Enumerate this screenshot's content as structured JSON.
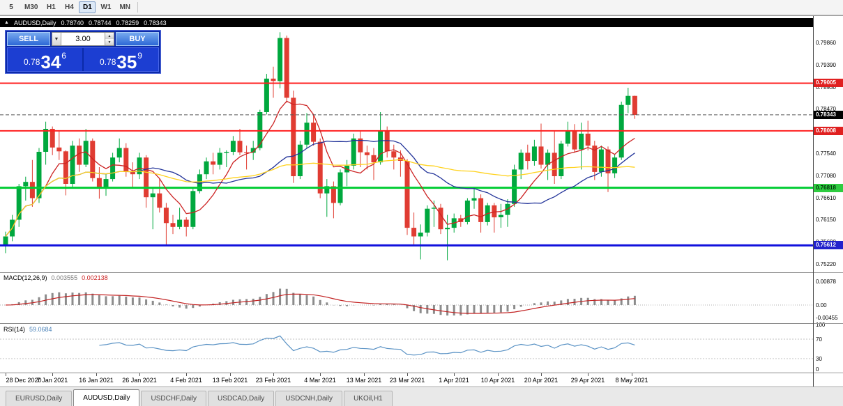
{
  "toolbar": {
    "timeframes": [
      {
        "label": "5",
        "active": false
      },
      {
        "label": "M30",
        "active": false
      },
      {
        "label": "H1",
        "active": false
      },
      {
        "label": "H4",
        "active": false
      },
      {
        "label": "D1",
        "active": true
      },
      {
        "label": "W1",
        "active": false
      },
      {
        "label": "MN",
        "active": false
      }
    ]
  },
  "symbol_bar": {
    "arrow": "▲",
    "symbol": "AUDUSD,Daily",
    "open": "0.78740",
    "high": "0.78744",
    "low": "0.78259",
    "close": "0.78343"
  },
  "trade_panel": {
    "sell_label": "SELL",
    "buy_label": "BUY",
    "volume": "3.00",
    "dropdown_icon": "▼",
    "spin_up": "▲",
    "spin_down": "▼",
    "sell_price": {
      "prefix": "0.78",
      "big": "34",
      "sup": "6"
    },
    "buy_price": {
      "prefix": "0.78",
      "big": "35",
      "sup": "9"
    }
  },
  "chart_data": {
    "type": "candlestick",
    "symbol": "AUDUSD",
    "timeframe": "Daily",
    "title": "AUDUSD,Daily",
    "colors": {
      "bull": "#00a83e",
      "bear": "#e03c32",
      "background": "#ffffff"
    },
    "price_axis": {
      "min": 0.7505,
      "max": 0.8041,
      "ticks": [
        "0.79860",
        "0.79390",
        "0.78930",
        "0.78470",
        "0.77540",
        "0.77080",
        "0.76610",
        "0.76150",
        "0.75690",
        "0.75220"
      ]
    },
    "levels": [
      {
        "label": "0.79005",
        "value": 0.79005,
        "line_color": "#ff2020",
        "badge_bg": "#e02020",
        "badge_fg": "#ffffff",
        "width": 2
      },
      {
        "label": "0.78008",
        "value": 0.78008,
        "line_color": "#ff2020",
        "badge_bg": "#e02020",
        "badge_fg": "#ffffff",
        "width": 2
      },
      {
        "label": "0.76818",
        "value": 0.76818,
        "line_color": "#00cc33",
        "badge_bg": "#2ecc40",
        "badge_fg": "#00330a",
        "width": 3
      },
      {
        "label": "0.75612",
        "value": 0.75612,
        "line_color": "#1111dd",
        "badge_bg": "#2222cc",
        "badge_fg": "#ffffff",
        "width": 3
      }
    ],
    "current_price": {
      "label": "0.78343",
      "value": 0.78343,
      "badge_bg": "#000000",
      "badge_fg": "#ffffff"
    },
    "moving_averages": [
      {
        "name": "ma-fast",
        "period": 7,
        "color": "#cc2222"
      },
      {
        "name": "ma-mid",
        "period": 21,
        "color": "#223399"
      },
      {
        "name": "ma-slow",
        "period": 55,
        "color": "#ffd21e"
      }
    ],
    "candles": [
      [
        0.756,
        0.759,
        0.7545,
        0.758
      ],
      [
        0.758,
        0.7625,
        0.757,
        0.7615
      ],
      [
        0.7615,
        0.769,
        0.76,
        0.7685
      ],
      [
        0.7685,
        0.7705,
        0.7655,
        0.7694
      ],
      [
        0.7694,
        0.774,
        0.7642,
        0.766
      ],
      [
        0.766,
        0.7765,
        0.765,
        0.7757
      ],
      [
        0.7757,
        0.782,
        0.773,
        0.7805
      ],
      [
        0.7805,
        0.781,
        0.775,
        0.7766
      ],
      [
        0.7766,
        0.78,
        0.774,
        0.7758
      ],
      [
        0.7758,
        0.776,
        0.7666,
        0.769
      ],
      [
        0.769,
        0.778,
        0.768,
        0.777
      ],
      [
        0.777,
        0.7785,
        0.7715,
        0.773
      ],
      [
        0.773,
        0.7805,
        0.7725,
        0.778
      ],
      [
        0.778,
        0.7785,
        0.7695,
        0.7702
      ],
      [
        0.7702,
        0.7725,
        0.7659,
        0.768
      ],
      [
        0.768,
        0.771,
        0.7665,
        0.77
      ],
      [
        0.77,
        0.7755,
        0.7695,
        0.7745
      ],
      [
        0.7745,
        0.7785,
        0.7735,
        0.7765
      ],
      [
        0.7765,
        0.7775,
        0.7705,
        0.7715
      ],
      [
        0.7715,
        0.7735,
        0.768,
        0.771
      ],
      [
        0.771,
        0.7755,
        0.77,
        0.7745
      ],
      [
        0.7745,
        0.775,
        0.764,
        0.7662
      ],
      [
        0.7662,
        0.768,
        0.7595,
        0.767
      ],
      [
        0.767,
        0.77,
        0.763,
        0.764
      ],
      [
        0.764,
        0.765,
        0.7563,
        0.7608
      ],
      [
        0.7608,
        0.7625,
        0.7585,
        0.76
      ],
      [
        0.76,
        0.764,
        0.7595,
        0.7615
      ],
      [
        0.7615,
        0.762,
        0.758,
        0.76
      ],
      [
        0.76,
        0.768,
        0.7595,
        0.7675
      ],
      [
        0.7675,
        0.772,
        0.767,
        0.771
      ],
      [
        0.771,
        0.7745,
        0.77,
        0.7737
      ],
      [
        0.7737,
        0.7755,
        0.771,
        0.773
      ],
      [
        0.773,
        0.7765,
        0.772,
        0.7755
      ],
      [
        0.7755,
        0.776,
        0.7725,
        0.7757
      ],
      [
        0.7757,
        0.779,
        0.775,
        0.778
      ],
      [
        0.778,
        0.7805,
        0.775,
        0.7756
      ],
      [
        0.7756,
        0.777,
        0.772,
        0.7755
      ],
      [
        0.7755,
        0.778,
        0.774,
        0.7765
      ],
      [
        0.7765,
        0.7845,
        0.776,
        0.784
      ],
      [
        0.784,
        0.792,
        0.7835,
        0.791
      ],
      [
        0.791,
        0.7935,
        0.787,
        0.7905
      ],
      [
        0.7905,
        0.8007,
        0.789,
        0.7995
      ],
      [
        0.7995,
        0.8,
        0.786,
        0.787
      ],
      [
        0.787,
        0.7885,
        0.7692,
        0.7706
      ],
      [
        0.7706,
        0.778,
        0.77,
        0.7772
      ],
      [
        0.7772,
        0.7838,
        0.7765,
        0.7818
      ],
      [
        0.7818,
        0.7835,
        0.777,
        0.7778
      ],
      [
        0.7778,
        0.7785,
        0.766,
        0.767
      ],
      [
        0.767,
        0.77,
        0.7621,
        0.7685
      ],
      [
        0.7685,
        0.7695,
        0.7618,
        0.765
      ],
      [
        0.765,
        0.772,
        0.7645,
        0.7714
      ],
      [
        0.7714,
        0.774,
        0.7685,
        0.7728
      ],
      [
        0.7728,
        0.7795,
        0.772,
        0.7785
      ],
      [
        0.7785,
        0.78,
        0.7725,
        0.7756
      ],
      [
        0.7756,
        0.777,
        0.772,
        0.775
      ],
      [
        0.775,
        0.7765,
        0.7698,
        0.7735
      ],
      [
        0.7735,
        0.784,
        0.773,
        0.78
      ],
      [
        0.78,
        0.781,
        0.7745,
        0.7758
      ],
      [
        0.7758,
        0.7772,
        0.772,
        0.7745
      ],
      [
        0.7745,
        0.776,
        0.7705,
        0.7738
      ],
      [
        0.7738,
        0.7742,
        0.7583,
        0.7598
      ],
      [
        0.7598,
        0.763,
        0.756,
        0.758
      ],
      [
        0.758,
        0.7605,
        0.7532,
        0.7588
      ],
      [
        0.7588,
        0.7645,
        0.758,
        0.7638
      ],
      [
        0.7638,
        0.7655,
        0.76,
        0.764
      ],
      [
        0.764,
        0.7648,
        0.7585,
        0.7595
      ],
      [
        0.7595,
        0.7625,
        0.753,
        0.7598
      ],
      [
        0.7598,
        0.7628,
        0.7588,
        0.7618
      ],
      [
        0.7618,
        0.7625,
        0.76,
        0.761
      ],
      [
        0.761,
        0.766,
        0.7605,
        0.7655
      ],
      [
        0.7655,
        0.768,
        0.7638,
        0.766
      ],
      [
        0.766,
        0.7668,
        0.7588,
        0.761
      ],
      [
        0.761,
        0.765,
        0.7603,
        0.7645
      ],
      [
        0.7645,
        0.765,
        0.7588,
        0.762
      ],
      [
        0.762,
        0.7648,
        0.7598,
        0.7625
      ],
      [
        0.7625,
        0.7658,
        0.76,
        0.7648
      ],
      [
        0.7648,
        0.773,
        0.7642,
        0.772
      ],
      [
        0.772,
        0.7762,
        0.77,
        0.7755
      ],
      [
        0.7755,
        0.7772,
        0.772,
        0.7738
      ],
      [
        0.7738,
        0.7782,
        0.7728,
        0.7768
      ],
      [
        0.7768,
        0.7816,
        0.7722,
        0.773
      ],
      [
        0.773,
        0.7762,
        0.7698,
        0.7755
      ],
      [
        0.7755,
        0.78,
        0.769,
        0.7706
      ],
      [
        0.7706,
        0.778,
        0.77,
        0.7774
      ],
      [
        0.7774,
        0.782,
        0.7768,
        0.78
      ],
      [
        0.78,
        0.7815,
        0.7755,
        0.7762
      ],
      [
        0.7762,
        0.7818,
        0.772,
        0.7795
      ],
      [
        0.7795,
        0.7822,
        0.776,
        0.777
      ],
      [
        0.777,
        0.778,
        0.7698,
        0.7715
      ],
      [
        0.7715,
        0.777,
        0.7705,
        0.7762
      ],
      [
        0.7762,
        0.7768,
        0.7673,
        0.7712
      ],
      [
        0.7712,
        0.7752,
        0.7702,
        0.7745
      ],
      [
        0.7745,
        0.7862,
        0.774,
        0.7855
      ],
      [
        0.7855,
        0.7891,
        0.7838,
        0.7874
      ],
      [
        0.7874,
        0.78744,
        0.78259,
        0.78343
      ]
    ],
    "time_labels": [
      {
        "text": "28 Dec 2020",
        "index": 0
      },
      {
        "text": "7 Jan 2021",
        "index": 7
      },
      {
        "text": "16 Jan 2021",
        "index": 13.5
      },
      {
        "text": "26 Jan 2021",
        "index": 20
      },
      {
        "text": "4 Feb 2021",
        "index": 27
      },
      {
        "text": "13 Feb 2021",
        "index": 33.5
      },
      {
        "text": "23 Feb 2021",
        "index": 40
      },
      {
        "text": "4 Mar 2021",
        "index": 47
      },
      {
        "text": "13 Mar 2021",
        "index": 53.5
      },
      {
        "text": "23 Mar 2021",
        "index": 60
      },
      {
        "text": "1 Apr 2021",
        "index": 67
      },
      {
        "text": "10 Apr 2021",
        "index": 73.5
      },
      {
        "text": "20 Apr 2021",
        "index": 80
      },
      {
        "text": "29 Apr 2021",
        "index": 87
      },
      {
        "text": "8 May 2021",
        "index": 93.5
      }
    ],
    "macd": {
      "name": "MACD(12,26,9)",
      "main_value": "0.003555",
      "signal_value": "0.002138",
      "fast": 12,
      "slow": 26,
      "signal": 9,
      "axis_ticks": [
        "0.00878",
        "0.00",
        "-0.00455"
      ],
      "histogram_color": "#8c8c8c",
      "signal_color": "#c22222"
    },
    "rsi": {
      "name": "RSI(14)",
      "value": "59.0684",
      "period": 14,
      "axis_ticks": [
        "100",
        "70",
        "30",
        "0"
      ],
      "levels": [
        70,
        30
      ],
      "line_color": "#5b93c5"
    }
  },
  "tabs": [
    {
      "label": "EURUSD,Daily",
      "active": false
    },
    {
      "label": "AUDUSD,Daily",
      "active": true
    },
    {
      "label": "USDCHF,Daily",
      "active": false
    },
    {
      "label": "USDCAD,Daily",
      "active": false
    },
    {
      "label": "USDCNH,Daily",
      "active": false
    },
    {
      "label": "UKOil,H1",
      "active": false
    }
  ]
}
